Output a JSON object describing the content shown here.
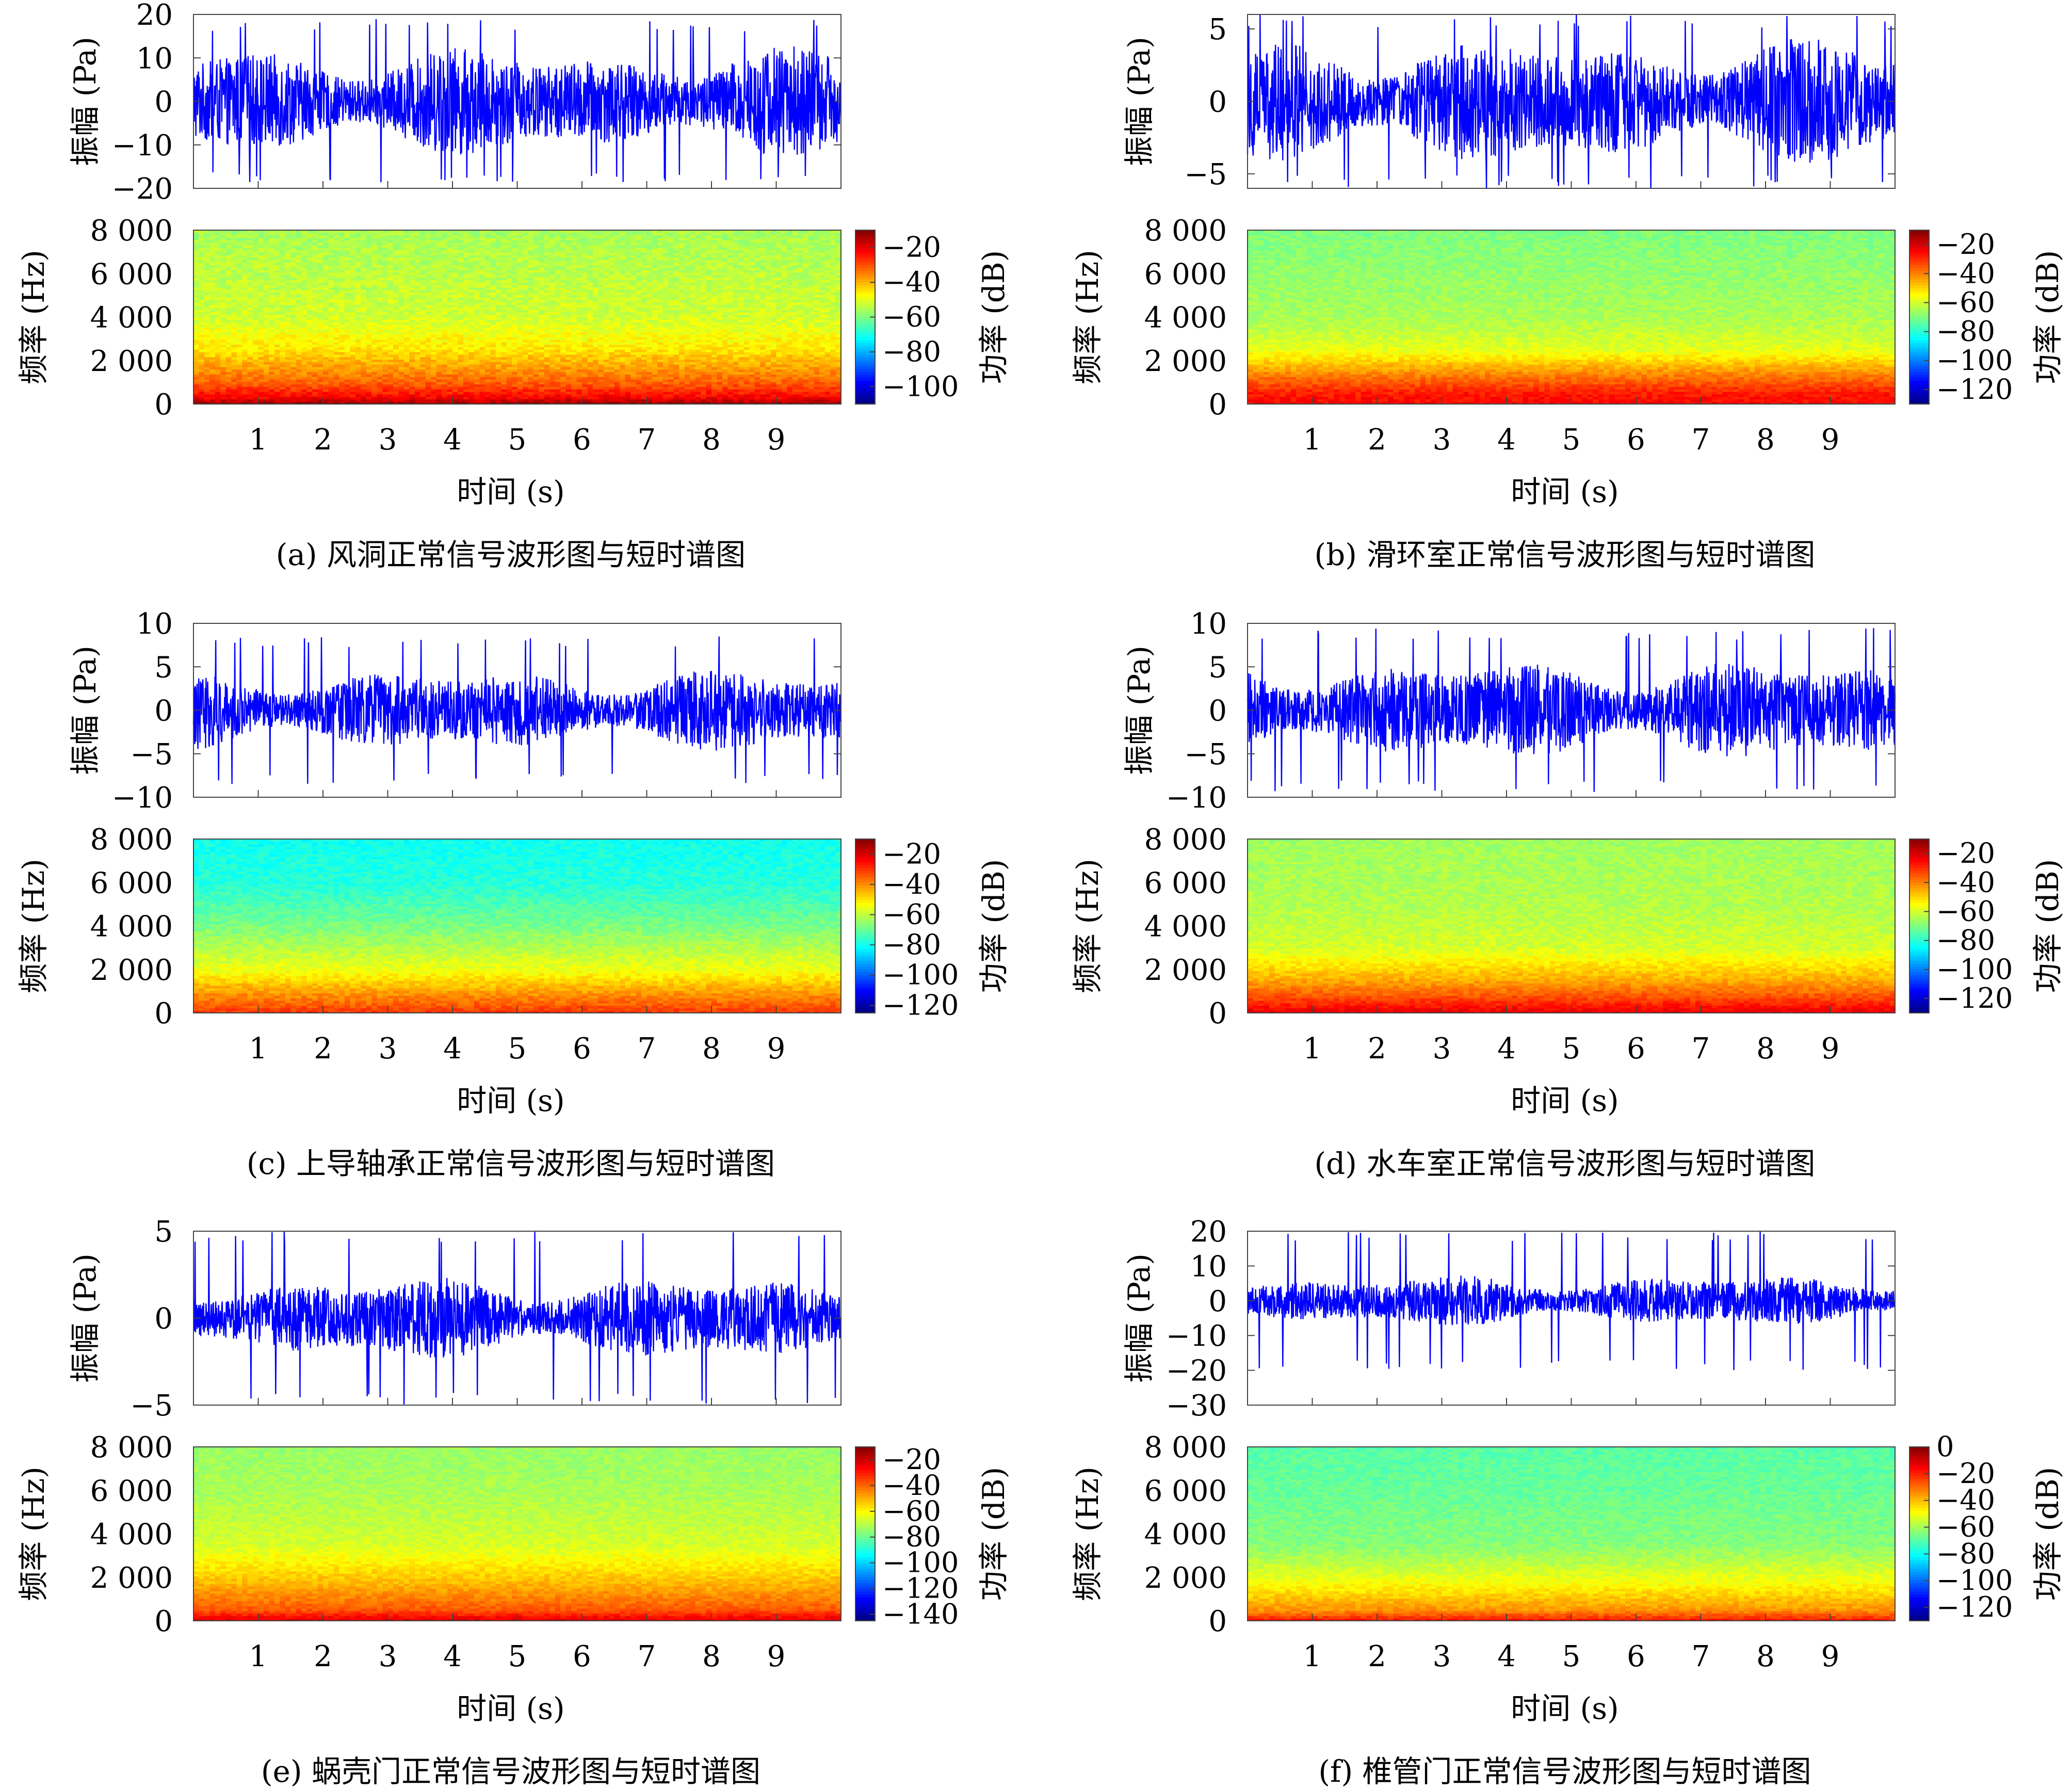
{
  "chart_data": [
    {
      "id": "a",
      "caption": "(a) 风洞正常信号波形图与短时谱图",
      "waveform": {
        "type": "line",
        "ylabel": "振幅 (Pa)",
        "ylim": [
          -20,
          20
        ],
        "yticks": [
          "20",
          "10",
          "0",
          "−10",
          "−20"
        ],
        "ytick_values": [
          20,
          10,
          0,
          -10,
          -20
        ],
        "xlim": [
          0,
          10
        ],
        "amplitude": 12,
        "peak": 19,
        "color": "#0000ff"
      },
      "spectrogram": {
        "type": "heatmap",
        "ylabel": "频率 (Hz)",
        "ylim": [
          0,
          8000
        ],
        "yticks": [
          "8 000",
          "6 000",
          "4 000",
          "2 000",
          "0"
        ],
        "ytick_values": [
          8000,
          6000,
          4000,
          2000,
          0
        ],
        "xlabel": "时间 (s)",
        "xlim": [
          0,
          10
        ],
        "xticks": [
          "1",
          "2",
          "3",
          "4",
          "5",
          "6",
          "7",
          "8",
          "9"
        ],
        "xtick_values": [
          1,
          2,
          3,
          4,
          5,
          6,
          7,
          8,
          9
        ],
        "colorbar_label": "功率 (dB)",
        "colorbar_ticks": [
          "−20",
          "−40",
          "−60",
          "−80",
          "−100"
        ],
        "colorbar_tick_values": [
          -20,
          -40,
          -60,
          -80,
          -100
        ],
        "clim": [
          -110,
          -10
        ],
        "power_profile": [
          [
            0,
            -12
          ],
          [
            300,
            -22
          ],
          [
            1000,
            -32
          ],
          [
            2500,
            -45
          ],
          [
            4000,
            -52
          ],
          [
            8000,
            -56
          ]
        ]
      }
    },
    {
      "id": "b",
      "caption": "(b) 滑环室正常信号波形图与短时谱图",
      "waveform": {
        "type": "line",
        "ylabel": "振幅 (Pa)",
        "ylim": [
          -6,
          6
        ],
        "yticks": [
          "5",
          "0",
          "−5"
        ],
        "ytick_values": [
          5,
          0,
          -5
        ],
        "xlim": [
          0,
          10
        ],
        "amplitude": 4.2,
        "peak": 6,
        "color": "#0000ff"
      },
      "spectrogram": {
        "type": "heatmap",
        "ylabel": "频率 (Hz)",
        "ylim": [
          0,
          8000
        ],
        "yticks": [
          "8 000",
          "6 000",
          "4 000",
          "2 000",
          "0"
        ],
        "ytick_values": [
          8000,
          6000,
          4000,
          2000,
          0
        ],
        "xlabel": "时间 (s)",
        "xlim": [
          0,
          10
        ],
        "xticks": [
          "1",
          "2",
          "3",
          "4",
          "5",
          "6",
          "7",
          "8",
          "9"
        ],
        "xtick_values": [
          1,
          2,
          3,
          4,
          5,
          6,
          7,
          8,
          9
        ],
        "colorbar_label": "功率 (dB)",
        "colorbar_ticks": [
          "−20",
          "−40",
          "−60",
          "−80",
          "−100",
          "−120"
        ],
        "colorbar_tick_values": [
          -20,
          -40,
          -60,
          -80,
          -100,
          -120
        ],
        "clim": [
          -130,
          -10
        ],
        "power_profile": [
          [
            0,
            -25
          ],
          [
            500,
            -28
          ],
          [
            1200,
            -38
          ],
          [
            2500,
            -58
          ],
          [
            4000,
            -65
          ],
          [
            8000,
            -70
          ]
        ]
      }
    },
    {
      "id": "c",
      "caption": "(c) 上导轴承正常信号波形图与短时谱图",
      "waveform": {
        "type": "line",
        "ylabel": "振幅 (Pa)",
        "ylim": [
          -10,
          10
        ],
        "yticks": [
          "10",
          "5",
          "0",
          "−5",
          "−10"
        ],
        "ytick_values": [
          10,
          5,
          0,
          -5,
          -10
        ],
        "xlim": [
          0,
          10
        ],
        "amplitude": 4.5,
        "peak": 8.5,
        "color": "#0000ff"
      },
      "spectrogram": {
        "type": "heatmap",
        "ylabel": "频率 (Hz)",
        "ylim": [
          0,
          8000
        ],
        "yticks": [
          "8 000",
          "6 000",
          "4 000",
          "2 000",
          "0"
        ],
        "ytick_values": [
          8000,
          6000,
          4000,
          2000,
          0
        ],
        "xlabel": "时间 (s)",
        "xlim": [
          0,
          10
        ],
        "xticks": [
          "1",
          "2",
          "3",
          "4",
          "5",
          "6",
          "7",
          "8",
          "9"
        ],
        "xtick_values": [
          1,
          2,
          3,
          4,
          5,
          6,
          7,
          8,
          9
        ],
        "colorbar_label": "功率 (dB)",
        "colorbar_ticks": [
          "−20",
          "−40",
          "−60",
          "−80",
          "−100",
          "−120"
        ],
        "colorbar_tick_values": [
          -20,
          -40,
          -60,
          -80,
          -100,
          -120
        ],
        "clim": [
          -125,
          -10
        ],
        "power_profile": [
          [
            0,
            -30
          ],
          [
            800,
            -40
          ],
          [
            2000,
            -55
          ],
          [
            4000,
            -68
          ],
          [
            6000,
            -78
          ],
          [
            8000,
            -80
          ]
        ]
      }
    },
    {
      "id": "d",
      "caption": "(d) 水车室正常信号波形图与短时谱图",
      "waveform": {
        "type": "line",
        "ylabel": "振幅 (Pa)",
        "ylim": [
          -10,
          10
        ],
        "yticks": [
          "10",
          "5",
          "0",
          "−5",
          "−10"
        ],
        "ytick_values": [
          10,
          5,
          0,
          -5,
          -10
        ],
        "xlim": [
          0,
          10
        ],
        "amplitude": 5.5,
        "peak": 9.5,
        "color": "#0000ff"
      },
      "spectrogram": {
        "type": "heatmap",
        "ylabel": "频率 (Hz)",
        "ylim": [
          0,
          8000
        ],
        "yticks": [
          "8 000",
          "6 000",
          "4 000",
          "2 000",
          "0"
        ],
        "ytick_values": [
          8000,
          6000,
          4000,
          2000,
          0
        ],
        "xlabel": "时间 (s)",
        "xlim": [
          0,
          10
        ],
        "xticks": [
          "1",
          "2",
          "3",
          "4",
          "5",
          "6",
          "7",
          "8",
          "9"
        ],
        "xtick_values": [
          1,
          2,
          3,
          4,
          5,
          6,
          7,
          8,
          9
        ],
        "colorbar_label": "功率 (dB)",
        "colorbar_ticks": [
          "−20",
          "−40",
          "−60",
          "−80",
          "−100",
          "−120"
        ],
        "colorbar_tick_values": [
          -20,
          -40,
          -60,
          -80,
          -100,
          -120
        ],
        "clim": [
          -130,
          -10
        ],
        "power_profile": [
          [
            0,
            -22
          ],
          [
            600,
            -32
          ],
          [
            1500,
            -45
          ],
          [
            3000,
            -60
          ],
          [
            5000,
            -64
          ],
          [
            8000,
            -66
          ]
        ]
      }
    },
    {
      "id": "e",
      "caption": "(e) 蜗壳门正常信号波形图与短时谱图",
      "waveform": {
        "type": "line",
        "ylabel": "振幅 (Pa)",
        "ylim": [
          -5,
          5
        ],
        "yticks": [
          "5",
          "0",
          "−5"
        ],
        "ytick_values": [
          5,
          0,
          -5
        ],
        "xlim": [
          0,
          10
        ],
        "amplitude": 2.3,
        "peak": 5,
        "color": "#0000ff"
      },
      "spectrogram": {
        "type": "heatmap",
        "ylabel": "频率 (Hz)",
        "ylim": [
          0,
          8000
        ],
        "yticks": [
          "8 000",
          "6 000",
          "4 000",
          "2 000",
          "0"
        ],
        "ytick_values": [
          8000,
          6000,
          4000,
          2000,
          0
        ],
        "xlabel": "时间 (s)",
        "xlim": [
          0,
          10
        ],
        "xticks": [
          "1",
          "2",
          "3",
          "4",
          "5",
          "6",
          "7",
          "8",
          "9"
        ],
        "xtick_values": [
          1,
          2,
          3,
          4,
          5,
          6,
          7,
          8,
          9
        ],
        "colorbar_label": "功率 (dB)",
        "colorbar_ticks": [
          "−20",
          "−40",
          "−60",
          "−80",
          "−100",
          "−120",
          "−140"
        ],
        "colorbar_tick_values": [
          -20,
          -40,
          -60,
          -80,
          -100,
          -120,
          -140
        ],
        "clim": [
          -145,
          -10
        ],
        "power_profile": [
          [
            0,
            -22
          ],
          [
            500,
            -38
          ],
          [
            1800,
            -52
          ],
          [
            3500,
            -66
          ],
          [
            6000,
            -72
          ],
          [
            8000,
            -74
          ]
        ]
      }
    },
    {
      "id": "f",
      "caption": "(f) 椎管门正常信号波形图与短时谱图",
      "waveform": {
        "type": "line",
        "ylabel": "振幅 (Pa)",
        "ylim": [
          -30,
          20
        ],
        "yticks": [
          "20",
          "10",
          "0",
          "−10",
          "−20",
          "−30"
        ],
        "ytick_values": [
          20,
          10,
          0,
          -10,
          -20,
          -30
        ],
        "xlim": [
          0,
          10
        ],
        "amplitude": 7,
        "peak": 20,
        "color": "#0000ff"
      },
      "spectrogram": {
        "type": "heatmap",
        "ylabel": "频率 (Hz)",
        "ylim": [
          0,
          8000
        ],
        "yticks": [
          "8 000",
          "6 000",
          "4 000",
          "2 000",
          "0"
        ],
        "ytick_values": [
          8000,
          6000,
          4000,
          2000,
          0
        ],
        "xlabel": "时间 (s)",
        "xlim": [
          0,
          10
        ],
        "xticks": [
          "1",
          "2",
          "3",
          "4",
          "5",
          "6",
          "7",
          "8",
          "9"
        ],
        "xtick_values": [
          1,
          2,
          3,
          4,
          5,
          6,
          7,
          8,
          9
        ],
        "colorbar_label": "功率 (dB)",
        "colorbar_ticks": [
          "0",
          "−20",
          "−40",
          "−60",
          "−80",
          "−100",
          "−120"
        ],
        "colorbar_tick_values": [
          0,
          -20,
          -40,
          -60,
          -80,
          -100,
          -120
        ],
        "clim": [
          -130,
          0
        ],
        "power_profile": [
          [
            0,
            -18
          ],
          [
            500,
            -35
          ],
          [
            1800,
            -50
          ],
          [
            3500,
            -64
          ],
          [
            6000,
            -68
          ],
          [
            8000,
            -70
          ]
        ]
      }
    }
  ]
}
